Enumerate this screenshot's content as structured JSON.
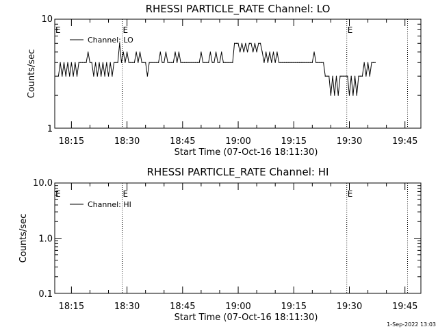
{
  "chart_data": [
    {
      "type": "line",
      "title": "RHESSI PARTICLE_RATE Channel: LO",
      "xlabel": "Start Time (07-Oct-16 18:11:30)",
      "ylabel": "Counts/sec",
      "y_scale": "log",
      "ylim": [
        1,
        10
      ],
      "y_ticks": [
        {
          "label": "1",
          "value": 1
        },
        {
          "label": "10",
          "value": 10
        }
      ],
      "x_unit": "minutes after 18:00",
      "xlim": [
        10.5,
        48.9
      ],
      "x_ticks": [
        {
          "label": "18:15",
          "value": 15
        },
        {
          "label": "18:30",
          "value": 30
        },
        {
          "label": "18:45",
          "value": 45
        },
        {
          "label": "19:00",
          "value": 60
        },
        {
          "label": "19:15",
          "value": 75
        },
        {
          "label": "19:30",
          "value": 90
        },
        {
          "label": "19:45",
          "value": 105
        }
      ],
      "grid": false,
      "legend_position": "top-left",
      "series": [
        {
          "name": "Channel: LO",
          "color": "#000000",
          "x_start": 11.5,
          "x_step": 0.5,
          "values": [
            3,
            4,
            3,
            4,
            3,
            4,
            3,
            4,
            3,
            4,
            3,
            4,
            4,
            4,
            4,
            4,
            5,
            4,
            4,
            3,
            4,
            3,
            4,
            3,
            4,
            3,
            4,
            3,
            4,
            3,
            4,
            4,
            4,
            6,
            4,
            5,
            4,
            5,
            4,
            4,
            4,
            4,
            5,
            4,
            5,
            4,
            4,
            4,
            3,
            4,
            4,
            4,
            4,
            4,
            4,
            5,
            4,
            4,
            5,
            4,
            4,
            4,
            4,
            5,
            4,
            5,
            4,
            4,
            4,
            4,
            4,
            4,
            4,
            4,
            4,
            4,
            4,
            5,
            4,
            4,
            4,
            4,
            5,
            4,
            4,
            5,
            4,
            4,
            5,
            4,
            4,
            4,
            4,
            4,
            4,
            6,
            6,
            6,
            5,
            6,
            5,
            6,
            5,
            6,
            6,
            5,
            6,
            5,
            6,
            6,
            5,
            4,
            5,
            4,
            5,
            4,
            5,
            4,
            5,
            4,
            4,
            4,
            4,
            4,
            4,
            4,
            4,
            4,
            4,
            4,
            4,
            4,
            4,
            4,
            4,
            4,
            4,
            4,
            5,
            4,
            4,
            4,
            4,
            4,
            3,
            3,
            3,
            2,
            3,
            2,
            3,
            2,
            3,
            3,
            3,
            3,
            3,
            2,
            3,
            2,
            3,
            2,
            3,
            3,
            3,
            4,
            3,
            4,
            3,
            4,
            4,
            4
          ]
        }
      ],
      "vlines": [
        {
          "value": 28.7,
          "marker": "E"
        },
        {
          "value": 89.3,
          "marker": "E"
        },
        {
          "value": 105.7,
          "marker": ""
        }
      ],
      "left_marker": "E"
    },
    {
      "type": "line",
      "title": "RHESSI PARTICLE_RATE Channel: HI",
      "xlabel": "Start Time (07-Oct-16 18:11:30)",
      "ylabel": "Counts/sec",
      "y_scale": "log",
      "ylim": [
        0.1,
        10
      ],
      "y_ticks": [
        {
          "label": "0.1",
          "value": 0.1
        },
        {
          "label": "1.0",
          "value": 1
        },
        {
          "label": "10.0",
          "value": 10
        }
      ],
      "x_unit": "minutes after 18:00",
      "xlim": [
        10.5,
        48.9
      ],
      "x_ticks": [
        {
          "label": "18:15",
          "value": 15
        },
        {
          "label": "18:30",
          "value": 30
        },
        {
          "label": "18:45",
          "value": 45
        },
        {
          "label": "19:00",
          "value": 60
        },
        {
          "label": "19:15",
          "value": 75
        },
        {
          "label": "19:30",
          "value": 90
        },
        {
          "label": "19:45",
          "value": 105
        }
      ],
      "grid": false,
      "legend_position": "top-left",
      "series": [
        {
          "name": "Channel: HI",
          "color": "#000000",
          "values": []
        }
      ],
      "vlines": [
        {
          "value": 28.7,
          "marker": "E"
        },
        {
          "value": 89.3,
          "marker": "E"
        },
        {
          "value": 105.7,
          "marker": ""
        }
      ],
      "left_marker": "E"
    }
  ],
  "footer": {
    "date_stamp": "1-Sep-2022 13:03"
  }
}
